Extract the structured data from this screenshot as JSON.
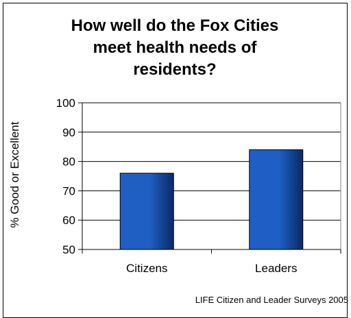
{
  "chart_data": {
    "type": "bar",
    "title": "How well do the Fox Cities meet health needs of residents?",
    "title_lines": [
      "How well do the Fox Cities",
      "meet health needs of",
      "residents?"
    ],
    "ylabel": "% Good or Excellent",
    "xlabel": "",
    "categories": [
      "Citizens",
      "Leaders"
    ],
    "values": [
      76,
      84
    ],
    "ylim": [
      50,
      100
    ],
    "yticks": [
      50,
      60,
      70,
      80,
      90,
      100
    ],
    "grid": true,
    "legend": "none",
    "bar_color": "#1f5fc4",
    "bar_dark": "#0a2a66",
    "source": "LIFE Citizen and Leader Surveys 2005"
  }
}
